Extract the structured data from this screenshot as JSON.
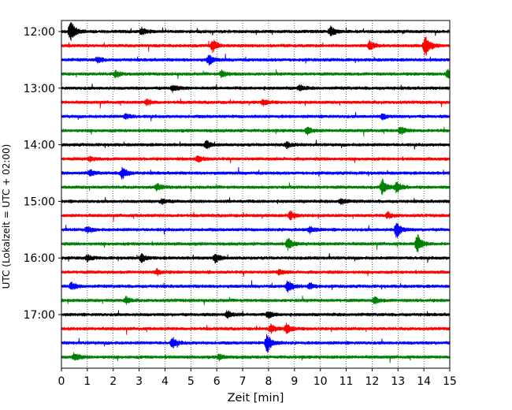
{
  "chart_data": {
    "type": "line",
    "title": "",
    "xlabel": "Zeit  [min]",
    "ylabel": "UTC (Lokalzeit = UTC + 02:00)",
    "xlim": [
      0,
      15
    ],
    "x_ticks": [
      0,
      1,
      2,
      3,
      4,
      5,
      6,
      7,
      8,
      9,
      10,
      11,
      12,
      13,
      14,
      15
    ],
    "x_tick_labels": [
      "0",
      "1",
      "2",
      "3",
      "4",
      "5",
      "6",
      "7",
      "8",
      "9",
      "10",
      "11",
      "12",
      "13",
      "14",
      "15"
    ],
    "y_ticks": [
      "12:00",
      "13:00",
      "14:00",
      "15:00",
      "16:00",
      "17:00"
    ],
    "grid": "vertical dotted at each minute",
    "trace_minutes": 15,
    "trace_colors": [
      "#000000",
      "#ff0000",
      "#0000ff",
      "#008000"
    ],
    "traces": [
      {
        "start": "12:00",
        "events": [
          {
            "t": 0.35,
            "amp": 1.0
          },
          {
            "t": 3.1,
            "amp": 0.35
          },
          {
            "t": 10.4,
            "amp": 0.4
          }
        ]
      },
      {
        "start": "12:15",
        "events": [
          {
            "t": 5.85,
            "amp": 0.55
          },
          {
            "t": 11.9,
            "amp": 0.45
          },
          {
            "t": 14.05,
            "amp": 1.0
          }
        ]
      },
      {
        "start": "12:30",
        "events": [
          {
            "t": 5.7,
            "amp": 0.45
          },
          {
            "t": 1.4,
            "amp": 0.25
          }
        ]
      },
      {
        "start": "12:45",
        "events": [
          {
            "t": 2.1,
            "amp": 0.3
          },
          {
            "t": 6.2,
            "amp": 0.3
          },
          {
            "t": 14.95,
            "amp": 0.4
          }
        ]
      },
      {
        "start": "13:00",
        "events": [
          {
            "t": 4.3,
            "amp": 0.3
          },
          {
            "t": 9.2,
            "amp": 0.25
          }
        ]
      },
      {
        "start": "13:15",
        "events": [
          {
            "t": 3.3,
            "amp": 0.25
          },
          {
            "t": 7.8,
            "amp": 0.25
          }
        ]
      },
      {
        "start": "13:30",
        "events": [
          {
            "t": 2.5,
            "amp": 0.25
          },
          {
            "t": 12.4,
            "amp": 0.25
          }
        ]
      },
      {
        "start": "13:45",
        "events": [
          {
            "t": 9.5,
            "amp": 0.3
          },
          {
            "t": 13.1,
            "amp": 0.35
          }
        ]
      },
      {
        "start": "14:00",
        "events": [
          {
            "t": 5.6,
            "amp": 0.35
          },
          {
            "t": 8.7,
            "amp": 0.25
          }
        ]
      },
      {
        "start": "14:15",
        "events": [
          {
            "t": 5.3,
            "amp": 0.3
          },
          {
            "t": 1.1,
            "amp": 0.2
          }
        ]
      },
      {
        "start": "14:30",
        "events": [
          {
            "t": 2.35,
            "amp": 0.55
          },
          {
            "t": 1.1,
            "amp": 0.25
          }
        ]
      },
      {
        "start": "14:45",
        "events": [
          {
            "t": 12.4,
            "amp": 0.75
          },
          {
            "t": 12.95,
            "amp": 0.5
          },
          {
            "t": 3.7,
            "amp": 0.3
          }
        ]
      },
      {
        "start": "15:00",
        "events": [
          {
            "t": 3.9,
            "amp": 0.25
          },
          {
            "t": 10.8,
            "amp": 0.25
          }
        ]
      },
      {
        "start": "15:15",
        "events": [
          {
            "t": 8.85,
            "amp": 0.35
          },
          {
            "t": 12.6,
            "amp": 0.25
          }
        ]
      },
      {
        "start": "15:30",
        "events": [
          {
            "t": 12.95,
            "amp": 0.75
          },
          {
            "t": 1.0,
            "amp": 0.25
          },
          {
            "t": 9.6,
            "amp": 0.3
          }
        ]
      },
      {
        "start": "15:45",
        "events": [
          {
            "t": 8.75,
            "amp": 0.5
          },
          {
            "t": 13.75,
            "amp": 0.85
          }
        ]
      },
      {
        "start": "16:00",
        "events": [
          {
            "t": 3.1,
            "amp": 0.35
          },
          {
            "t": 5.95,
            "amp": 0.4
          },
          {
            "t": 1.0,
            "amp": 0.25
          }
        ]
      },
      {
        "start": "16:15",
        "events": [
          {
            "t": 3.7,
            "amp": 0.25
          },
          {
            "t": 8.4,
            "amp": 0.25
          }
        ]
      },
      {
        "start": "16:30",
        "events": [
          {
            "t": 8.75,
            "amp": 0.55
          },
          {
            "t": 0.4,
            "amp": 0.3
          },
          {
            "t": 9.6,
            "amp": 0.3
          }
        ]
      },
      {
        "start": "16:45",
        "events": [
          {
            "t": 2.5,
            "amp": 0.3
          },
          {
            "t": 12.1,
            "amp": 0.3
          }
        ]
      },
      {
        "start": "17:00",
        "events": [
          {
            "t": 6.4,
            "amp": 0.35
          },
          {
            "t": 8.0,
            "amp": 0.3
          }
        ]
      },
      {
        "start": "17:15",
        "events": [
          {
            "t": 8.1,
            "amp": 0.35
          },
          {
            "t": 8.7,
            "amp": 0.45
          }
        ]
      },
      {
        "start": "17:30",
        "events": [
          {
            "t": 4.3,
            "amp": 0.45
          },
          {
            "t": 7.95,
            "amp": 0.85
          }
        ]
      },
      {
        "start": "17:45",
        "events": [
          {
            "t": 0.5,
            "amp": 0.35
          },
          {
            "t": 6.1,
            "amp": 0.25
          }
        ]
      }
    ]
  }
}
